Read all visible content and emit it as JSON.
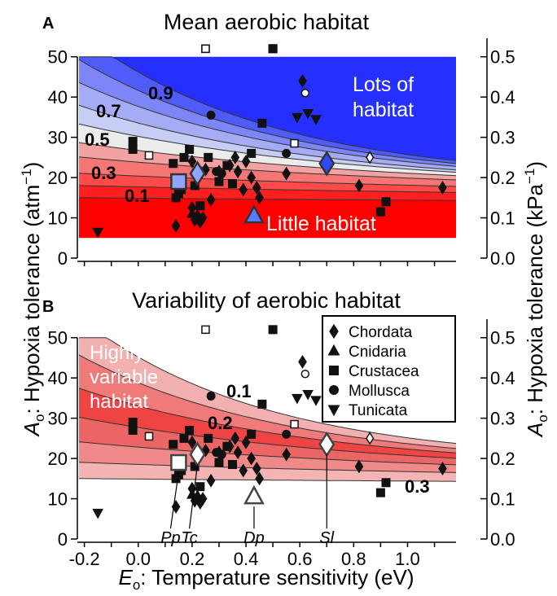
{
  "figure": {
    "panel_a_letter": "A",
    "panel_b_letter": "B",
    "panel_a_title": "Mean aerobic habitat",
    "panel_b_title": "Variability of aerobic habitat",
    "ylabel_left": "Aₒ: Hypoxia tolerance (atm⁻¹)",
    "ylabel_right": "Aₒ: Hypoxia tolerance (kPa⁻¹)",
    "xlabel": "Eₒ: Temperature sensitivity (eV)"
  },
  "chart_data": [
    {
      "panel": "A",
      "type": "scatter",
      "title": "Mean aerobic habitat",
      "xlabel": "Eₒ: Temperature sensitivity (eV)",
      "ylabel": "Aₒ: Hypoxia tolerance (atm⁻¹)",
      "ylabel_right": "Aₒ: Hypoxia tolerance (kPa⁻¹)",
      "xlim": [
        -0.22,
        1.18
      ],
      "ylim": [
        0,
        55
      ],
      "x_ticks": [],
      "y_ticks": [
        0,
        10,
        20,
        30,
        40,
        50
      ],
      "y_ticks_right": [
        "0.0",
        "0.1",
        "0.2",
        "0.3",
        "0.4",
        "0.5"
      ],
      "region_labels": [
        "Lots of habitat",
        "Little habitat"
      ],
      "contour_labels": [
        "0.9",
        "0.7",
        "0.5",
        "0.3",
        "0.1"
      ],
      "colormap": {
        "low": "#ff0000",
        "mid": "#f2f2f2",
        "high": "#1f2bff"
      }
    },
    {
      "panel": "B",
      "type": "scatter",
      "title": "Variability of aerobic habitat",
      "xlabel": "Eₒ: Temperature sensitivity (eV)",
      "ylabel": "Aₒ: Hypoxia tolerance (atm⁻¹)",
      "ylabel_right": "Aₒ: Hypoxia tolerance (kPa⁻¹)",
      "xlim": [
        -0.22,
        1.18
      ],
      "ylim": [
        0,
        55
      ],
      "x_ticks": [
        "-0.2",
        "0.0",
        "0.2",
        "0.4",
        "0.6",
        "0.8",
        "1.0"
      ],
      "y_ticks": [
        0,
        10,
        20,
        30,
        40,
        50
      ],
      "y_ticks_right": [
        "0.0",
        "0.1",
        "0.2",
        "0.3",
        "0.4",
        "0.5"
      ],
      "region_labels": [
        "Highly variable habitat"
      ],
      "contour_labels": [
        "0.1",
        "0.2",
        "0.3"
      ],
      "legend_position": "top-right",
      "legend": [
        {
          "name": "Chordata",
          "marker": "diamond"
        },
        {
          "name": "Cnidaria",
          "marker": "triangle-up"
        },
        {
          "name": "Crustacea",
          "marker": "square"
        },
        {
          "name": "Mollusca",
          "marker": "circle"
        },
        {
          "name": "Tunicata",
          "marker": "triangle-down"
        }
      ],
      "species_labels": [
        "Pp",
        "Tc",
        "Dp",
        "Sl"
      ],
      "colormap": {
        "low": "#ffffff",
        "high": "#ee2222"
      }
    }
  ],
  "points": [
    {
      "g": "Tunicata",
      "x": -0.15,
      "y": 6.5
    },
    {
      "g": "Chordata",
      "x": 0.14,
      "y": 8
    },
    {
      "g": "Chordata",
      "x": 0.2,
      "y": 12.5
    },
    {
      "g": "Chordata",
      "x": 0.21,
      "y": 9.5
    },
    {
      "g": "Chordata",
      "x": 0.22,
      "y": 10.5
    },
    {
      "g": "Chordata",
      "x": 0.23,
      "y": 9
    },
    {
      "g": "Chordata",
      "x": 0.24,
      "y": 10
    },
    {
      "g": "Chordata",
      "x": 0.2,
      "y": 24
    },
    {
      "g": "Chordata",
      "x": 0.25,
      "y": 22
    },
    {
      "g": "Chordata",
      "x": 0.27,
      "y": 14.5
    },
    {
      "g": "Chordata",
      "x": 0.3,
      "y": 21.5
    },
    {
      "g": "Chordata",
      "x": 0.34,
      "y": 23
    },
    {
      "g": "Chordata",
      "x": 0.36,
      "y": 25
    },
    {
      "g": "Chordata",
      "x": 0.37,
      "y": 21.5
    },
    {
      "g": "Chordata",
      "x": 0.39,
      "y": 17
    },
    {
      "g": "Chordata",
      "x": 0.4,
      "y": 24
    },
    {
      "g": "Chordata",
      "x": 0.42,
      "y": 20
    },
    {
      "g": "Chordata",
      "x": 0.44,
      "y": 17.5
    },
    {
      "g": "Chordata",
      "x": 0.45,
      "y": 15
    },
    {
      "g": "Chordata",
      "x": 0.55,
      "y": 21
    },
    {
      "g": "Chordata",
      "x": 0.61,
      "y": 44
    },
    {
      "g": "Chordata",
      "x": 0.82,
      "y": 18
    },
    {
      "g": "Chordata",
      "x": 1.13,
      "y": 17.5
    },
    {
      "g": "Cnidaria",
      "x": 0.2,
      "y": 11
    },
    {
      "g": "Crustacea",
      "x": -0.02,
      "y": 29
    },
    {
      "g": "Crustacea",
      "x": -0.02,
      "y": 27
    },
    {
      "g": "Crustacea",
      "x": 0.13,
      "y": 23.5
    },
    {
      "g": "Crustacea",
      "x": 0.14,
      "y": 15
    },
    {
      "g": "Crustacea",
      "x": 0.15,
      "y": 16
    },
    {
      "g": "Crustacea",
      "x": 0.16,
      "y": 17
    },
    {
      "g": "Crustacea",
      "x": 0.17,
      "y": 25
    },
    {
      "g": "Crustacea",
      "x": 0.19,
      "y": 27
    },
    {
      "g": "Crustacea",
      "x": 0.21,
      "y": 18
    },
    {
      "g": "Crustacea",
      "x": 0.23,
      "y": 13
    },
    {
      "g": "Crustacea",
      "x": 0.26,
      "y": 25
    },
    {
      "g": "Crustacea",
      "x": 0.3,
      "y": 19
    },
    {
      "g": "Crustacea",
      "x": 0.33,
      "y": 23
    },
    {
      "g": "Crustacea",
      "x": 0.35,
      "y": 18.5
    },
    {
      "g": "Crustacea",
      "x": 0.42,
      "y": 26
    },
    {
      "g": "Crustacea",
      "x": 0.46,
      "y": 33.5
    },
    {
      "g": "Crustacea",
      "x": 0.5,
      "y": 52
    },
    {
      "g": "Crustacea",
      "x": 0.9,
      "y": 11.5
    },
    {
      "g": "Crustacea",
      "x": 0.92,
      "y": 14
    },
    {
      "g": "Mollusca",
      "x": 0.27,
      "y": 35.5
    },
    {
      "g": "Mollusca",
      "x": 0.29,
      "y": 21.5
    },
    {
      "g": "Mollusca",
      "x": 0.31,
      "y": 21
    },
    {
      "g": "Mollusca",
      "x": 0.55,
      "y": 26
    },
    {
      "g": "Tunicata",
      "x": 0.59,
      "y": 35
    },
    {
      "g": "Tunicata",
      "x": 0.63,
      "y": 36
    },
    {
      "g": "Tunicata",
      "x": 0.66,
      "y": 34.5
    }
  ],
  "open_points": [
    {
      "m": "square",
      "x": 0.25,
      "y": 52
    },
    {
      "m": "square",
      "x": 0.04,
      "y": 25.5
    },
    {
      "m": "square",
      "x": 0.58,
      "y": 28.5
    },
    {
      "m": "circle",
      "x": 0.62,
      "y": 41
    },
    {
      "m": "diamond",
      "x": 0.86,
      "y": 25
    }
  ],
  "highlights": [
    {
      "label": "Pp",
      "m": "square",
      "x": 0.15,
      "y": 19
    },
    {
      "label": "Tc",
      "m": "diamond",
      "x": 0.22,
      "y": 21
    },
    {
      "label": "Dp",
      "m": "triangle-up",
      "x": 0.43,
      "y": 10.5
    },
    {
      "label": "Sl",
      "m": "diamond",
      "x": 0.7,
      "y": 23.5
    }
  ]
}
